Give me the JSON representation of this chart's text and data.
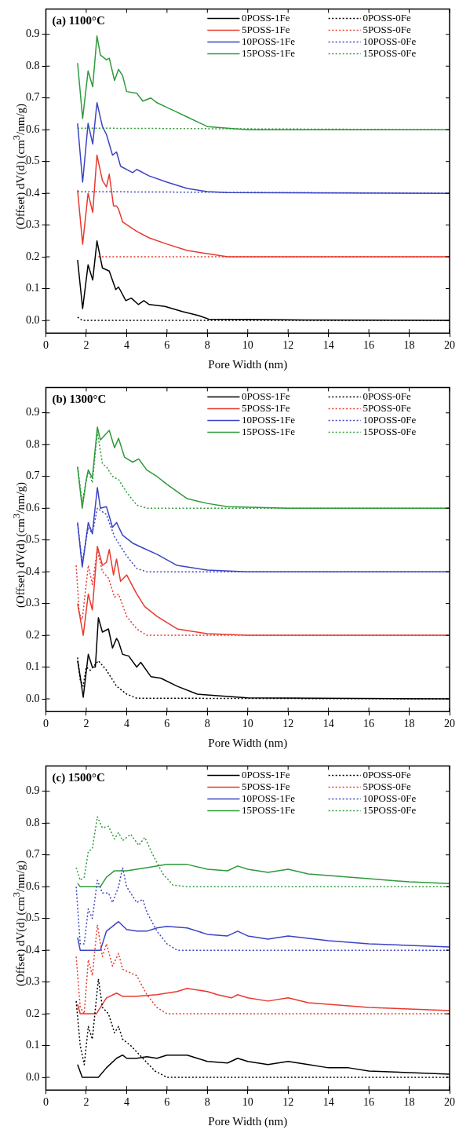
{
  "chart_data": [
    {
      "type": "line",
      "title": "(a) 1100°C",
      "xlabel": "Pore Width (nm)",
      "ylabel": "(Offset) dV(d) (cm$^{3}$/nm/g)",
      "xlim": [
        0,
        20
      ],
      "xticks": [
        0,
        2,
        4,
        6,
        8,
        10,
        12,
        14,
        16,
        18,
        20
      ],
      "ylim": [
        -0.04,
        0.98
      ],
      "yticks": [
        {
          "value": 0,
          "label": "0.0"
        },
        {
          "value": 0.1,
          "label": "0.1"
        },
        {
          "value": 0.2,
          "label": "0.2"
        },
        {
          "value": 0.3,
          "label": "0.3"
        },
        {
          "value": 0.4,
          "label": "0.4"
        },
        {
          "value": 0.5,
          "label": "0.5"
        },
        {
          "value": 0.6,
          "label": "0.6"
        },
        {
          "value": 0.7,
          "label": "0.7"
        },
        {
          "value": 0.8,
          "label": "0.8"
        },
        {
          "value": 0.9,
          "label": "0.9"
        }
      ],
      "grid": false,
      "legend": "top right",
      "marker": "none",
      "series": [
        {
          "name": "0POSS-1Fe",
          "color": "#000000",
          "line_style": "solid",
          "x": [
            1.57,
            1.82,
            2.09,
            2.32,
            2.53,
            2.8,
            3.14,
            3.46,
            3.6,
            3.96,
            4.23,
            4.58,
            4.85,
            5.12,
            5.9,
            6.76,
            7.58,
            8.06,
            10,
            12.8,
            20
          ],
          "values": [
            0.19,
            0.037,
            0.175,
            0.127,
            0.25,
            0.165,
            0.155,
            0.097,
            0.105,
            0.062,
            0.07,
            0.05,
            0.062,
            0.05,
            0.044,
            0.028,
            0.015,
            0.004,
            0.003,
            0.001,
            0
          ]
        },
        {
          "name": "0POSS-0Fe",
          "color": "#000000",
          "line_style": "dotted",
          "x": [
            1.57,
            1.8,
            20
          ],
          "values": [
            0.01,
            0,
            0
          ]
        },
        {
          "name": "5POSS-1Fe",
          "color": "#e8392f",
          "line_style": "solid",
          "x": [
            1.57,
            1.82,
            2.09,
            2.32,
            2.53,
            2.8,
            3.0,
            3.14,
            3.35,
            3.5,
            3.6,
            3.8,
            4.5,
            5.1,
            6,
            7,
            8,
            9,
            20
          ],
          "values": [
            0.41,
            0.24,
            0.4,
            0.34,
            0.52,
            0.44,
            0.42,
            0.46,
            0.36,
            0.36,
            0.35,
            0.31,
            0.28,
            0.26,
            0.24,
            0.22,
            0.21,
            0.2,
            0.2
          ]
        },
        {
          "name": "5POSS-0Fe",
          "color": "#e8392f",
          "line_style": "dotted",
          "x": [
            2.6,
            20
          ],
          "values": [
            0.2,
            0.2
          ]
        },
        {
          "name": "10POSS-1Fe",
          "color": "#3b44c4",
          "line_style": "solid",
          "x": [
            1.57,
            1.82,
            2.09,
            2.32,
            2.53,
            2.8,
            3.0,
            3.3,
            3.5,
            3.7,
            4.3,
            4.5,
            5.1,
            6,
            7,
            8,
            9,
            20
          ],
          "values": [
            0.62,
            0.435,
            0.62,
            0.555,
            0.685,
            0.61,
            0.585,
            0.52,
            0.53,
            0.485,
            0.465,
            0.475,
            0.455,
            0.435,
            0.415,
            0.405,
            0.402,
            0.4
          ]
        },
        {
          "name": "10POSS-0Fe",
          "color": "#3b44c4",
          "line_style": "dotted",
          "x": [
            1.57,
            20
          ],
          "values": [
            0.405,
            0.4
          ]
        },
        {
          "name": "15POSS-1Fe",
          "color": "#2e9a3a",
          "line_style": "solid",
          "x": [
            1.57,
            1.82,
            2.09,
            2.32,
            2.53,
            2.7,
            3.0,
            3.14,
            3.4,
            3.6,
            3.8,
            4.0,
            4.5,
            4.8,
            5.2,
            5.5,
            6,
            6.5,
            7,
            8,
            9,
            10,
            20
          ],
          "values": [
            0.81,
            0.635,
            0.785,
            0.735,
            0.895,
            0.835,
            0.82,
            0.825,
            0.755,
            0.79,
            0.77,
            0.72,
            0.715,
            0.69,
            0.7,
            0.685,
            0.67,
            0.655,
            0.64,
            0.61,
            0.605,
            0.6,
            0.6
          ]
        },
        {
          "name": "15POSS-0Fe",
          "color": "#2e9a3a",
          "line_style": "dotted",
          "x": [
            1.57,
            20
          ],
          "values": [
            0.605,
            0.6
          ]
        }
      ]
    },
    {
      "type": "line",
      "title": "(b) 1300°C",
      "xlabel": "Pore Width (nm)",
      "ylabel": "(Offset) dV(d) (cm$^{3}$/nm/g)",
      "xlim": [
        0,
        20
      ],
      "xticks": [
        0,
        2,
        4,
        6,
        8,
        10,
        12,
        14,
        16,
        18,
        20
      ],
      "ylim": [
        -0.04,
        0.98
      ],
      "yticks": [
        {
          "value": 0,
          "label": "0.0"
        },
        {
          "value": 0.1,
          "label": "0.1"
        },
        {
          "value": 0.2,
          "label": "0.2"
        },
        {
          "value": 0.3,
          "label": "0.3"
        },
        {
          "value": 0.4,
          "label": "0.4"
        },
        {
          "value": 0.5,
          "label": "0.5"
        },
        {
          "value": 0.6,
          "label": "0.6"
        },
        {
          "value": 0.7,
          "label": "0.7"
        },
        {
          "value": 0.8,
          "label": "0.8"
        },
        {
          "value": 0.9,
          "label": "0.9"
        }
      ],
      "grid": false,
      "legend": "top right",
      "marker": "none",
      "series": [
        {
          "name": "0POSS-1Fe",
          "color": "#000000",
          "line_style": "solid",
          "x": [
            1.57,
            1.7,
            1.85,
            2.1,
            2.3,
            2.45,
            2.6,
            2.8,
            3.1,
            3.3,
            3.5,
            3.6,
            3.8,
            4.1,
            4.5,
            4.7,
            5.2,
            5.7,
            6.5,
            7.5,
            8.5,
            10,
            20
          ],
          "values": [
            0.12,
            0.07,
            0.005,
            0.14,
            0.1,
            0.1,
            0.255,
            0.21,
            0.22,
            0.16,
            0.19,
            0.18,
            0.14,
            0.135,
            0.1,
            0.115,
            0.07,
            0.065,
            0.04,
            0.015,
            0.01,
            0.003,
            0
          ]
        },
        {
          "name": "0POSS-0Fe",
          "color": "#000000",
          "line_style": "dotted",
          "x": [
            1.57,
            1.7,
            1.85,
            2.0,
            2.2,
            2.6,
            3.0,
            3.5,
            4.0,
            4.5,
            20
          ],
          "values": [
            0.13,
            0.06,
            0.04,
            0.1,
            0.09,
            0.12,
            0.09,
            0.04,
            0.015,
            0.002,
            0
          ]
        },
        {
          "name": "5POSS-1Fe",
          "color": "#e8392f",
          "line_style": "solid",
          "x": [
            1.57,
            1.85,
            2.1,
            2.3,
            2.55,
            2.8,
            3.0,
            3.14,
            3.35,
            3.5,
            3.7,
            4.0,
            4.5,
            4.9,
            5.5,
            6.5,
            8,
            10,
            20
          ],
          "values": [
            0.3,
            0.2,
            0.33,
            0.28,
            0.48,
            0.42,
            0.43,
            0.47,
            0.39,
            0.44,
            0.37,
            0.39,
            0.33,
            0.29,
            0.26,
            0.22,
            0.205,
            0.2,
            0.2
          ]
        },
        {
          "name": "5POSS-0Fe",
          "color": "#e8392f",
          "line_style": "dotted",
          "x": [
            1.5,
            1.65,
            1.8,
            2.1,
            2.3,
            2.55,
            2.8,
            3.1,
            3.4,
            3.6,
            4.0,
            4.5,
            5.0,
            20
          ],
          "values": [
            0.42,
            0.27,
            0.25,
            0.42,
            0.36,
            0.47,
            0.4,
            0.38,
            0.32,
            0.33,
            0.26,
            0.22,
            0.2,
            0.2
          ]
        },
        {
          "name": "10POSS-1Fe",
          "color": "#3b44c4",
          "line_style": "solid",
          "x": [
            1.57,
            1.8,
            2.1,
            2.3,
            2.55,
            2.7,
            3.0,
            3.3,
            3.5,
            3.8,
            4.3,
            4.8,
            5.5,
            6.5,
            8,
            10,
            20
          ],
          "values": [
            0.555,
            0.415,
            0.555,
            0.52,
            0.665,
            0.6,
            0.605,
            0.54,
            0.555,
            0.515,
            0.49,
            0.475,
            0.455,
            0.42,
            0.405,
            0.4,
            0.4
          ]
        },
        {
          "name": "10POSS-0Fe",
          "color": "#3b44c4",
          "line_style": "dotted",
          "x": [
            1.57,
            1.8,
            2.1,
            2.3,
            2.55,
            3.0,
            3.4,
            4.0,
            4.5,
            5.0,
            20
          ],
          "values": [
            0.55,
            0.43,
            0.54,
            0.52,
            0.6,
            0.58,
            0.51,
            0.45,
            0.41,
            0.4,
            0.4
          ]
        },
        {
          "name": "15POSS-1Fe",
          "color": "#2e9a3a",
          "line_style": "solid",
          "x": [
            1.57,
            1.8,
            2.0,
            2.1,
            2.3,
            2.55,
            2.7,
            3.14,
            3.4,
            3.6,
            3.9,
            4.3,
            4.6,
            5.0,
            5.5,
            6,
            7,
            8,
            9,
            12,
            20
          ],
          "values": [
            0.73,
            0.6,
            0.69,
            0.72,
            0.695,
            0.855,
            0.815,
            0.845,
            0.79,
            0.82,
            0.76,
            0.745,
            0.755,
            0.72,
            0.7,
            0.675,
            0.63,
            0.615,
            0.605,
            0.6,
            0.6
          ]
        },
        {
          "name": "15POSS-0Fe",
          "color": "#2e9a3a",
          "line_style": "dotted",
          "x": [
            1.57,
            1.8,
            2.1,
            2.3,
            2.55,
            2.8,
            3.0,
            3.3,
            3.6,
            4.0,
            4.5,
            5.0,
            20
          ],
          "values": [
            0.73,
            0.62,
            0.72,
            0.68,
            0.84,
            0.74,
            0.73,
            0.7,
            0.69,
            0.65,
            0.61,
            0.6,
            0.6
          ]
        }
      ]
    },
    {
      "type": "line",
      "title": "(c) 1500°C",
      "xlabel": "Pore Width (nm)",
      "ylabel": "(Offset) dV(d) (cm$^{3}$/nm/g)",
      "xlim": [
        0,
        20
      ],
      "xticks": [
        0,
        2,
        4,
        6,
        8,
        10,
        12,
        14,
        16,
        18,
        20
      ],
      "ylim": [
        -0.04,
        0.98
      ],
      "yticks": [
        {
          "value": 0,
          "label": "0.0"
        },
        {
          "value": 0.1,
          "label": "0.1"
        },
        {
          "value": 0.2,
          "label": "0.2"
        },
        {
          "value": 0.3,
          "label": "0.3"
        },
        {
          "value": 0.4,
          "label": "0.4"
        },
        {
          "value": 0.5,
          "label": "0.5"
        },
        {
          "value": 0.6,
          "label": "0.6"
        },
        {
          "value": 0.7,
          "label": "0.7"
        },
        {
          "value": 0.8,
          "label": "0.8"
        },
        {
          "value": 0.9,
          "label": "0.9"
        }
      ],
      "grid": false,
      "legend": "top right",
      "marker": "none",
      "series": [
        {
          "name": "0POSS-1Fe",
          "color": "#000000",
          "line_style": "solid",
          "x": [
            1.57,
            1.8,
            2.6,
            3.0,
            3.5,
            3.8,
            4.0,
            4.5,
            5.0,
            5.5,
            6.0,
            6.5,
            7,
            7.5,
            8,
            9,
            9.5,
            10,
            11,
            12,
            13,
            14,
            15,
            16,
            18,
            20
          ],
          "values": [
            0.04,
            0,
            0,
            0.03,
            0.06,
            0.07,
            0.06,
            0.06,
            0.065,
            0.06,
            0.07,
            0.07,
            0.07,
            0.06,
            0.05,
            0.045,
            0.06,
            0.05,
            0.04,
            0.05,
            0.04,
            0.03,
            0.03,
            0.02,
            0.015,
            0.01
          ]
        },
        {
          "name": "0POSS-0Fe",
          "color": "#000000",
          "line_style": "dotted",
          "x": [
            1.5,
            1.7,
            1.9,
            2.1,
            2.3,
            2.6,
            2.8,
            3.1,
            3.4,
            3.6,
            3.8,
            4.2,
            4.8,
            5.4,
            6,
            20
          ],
          "values": [
            0.24,
            0.1,
            0.04,
            0.16,
            0.12,
            0.31,
            0.22,
            0.2,
            0.14,
            0.16,
            0.12,
            0.1,
            0.06,
            0.02,
            0,
            0
          ]
        },
        {
          "name": "5POSS-1Fe",
          "color": "#e8392f",
          "line_style": "solid",
          "x": [
            1.57,
            1.7,
            2.5,
            3.0,
            3.5,
            3.8,
            4.5,
            5.5,
            6.5,
            7,
            8,
            8.5,
            9.2,
            9.5,
            10,
            11,
            12,
            13,
            14,
            16,
            18,
            20
          ],
          "values": [
            0.23,
            0.2,
            0.2,
            0.25,
            0.265,
            0.255,
            0.255,
            0.26,
            0.27,
            0.28,
            0.27,
            0.26,
            0.25,
            0.26,
            0.25,
            0.24,
            0.25,
            0.235,
            0.23,
            0.22,
            0.215,
            0.21
          ]
        },
        {
          "name": "5POSS-0Fe",
          "color": "#e8392f",
          "line_style": "dotted",
          "x": [
            1.5,
            1.7,
            1.9,
            2.1,
            2.3,
            2.55,
            2.8,
            3.0,
            3.3,
            3.6,
            3.8,
            4.5,
            5.0,
            5.5,
            6,
            20
          ],
          "values": [
            0.38,
            0.22,
            0.2,
            0.37,
            0.32,
            0.48,
            0.38,
            0.42,
            0.35,
            0.39,
            0.34,
            0.32,
            0.26,
            0.22,
            0.2,
            0.2
          ]
        },
        {
          "name": "10POSS-1Fe",
          "color": "#3b44c4",
          "line_style": "solid",
          "x": [
            1.57,
            1.7,
            2.7,
            3.0,
            3.6,
            4.0,
            4.5,
            5.0,
            5.5,
            6.0,
            7,
            8,
            9,
            9.5,
            10,
            11,
            12,
            14,
            16,
            18,
            20
          ],
          "values": [
            0.44,
            0.4,
            0.4,
            0.46,
            0.49,
            0.465,
            0.46,
            0.46,
            0.47,
            0.475,
            0.47,
            0.45,
            0.445,
            0.46,
            0.445,
            0.435,
            0.445,
            0.43,
            0.42,
            0.415,
            0.41
          ]
        },
        {
          "name": "10POSS-0Fe",
          "color": "#3b44c4",
          "line_style": "dotted",
          "x": [
            1.5,
            1.7,
            1.9,
            2.1,
            2.3,
            2.55,
            2.8,
            3.1,
            3.3,
            3.6,
            3.8,
            4.0,
            4.5,
            4.8,
            5.0,
            5.5,
            6,
            6.5,
            20
          ],
          "values": [
            0.6,
            0.42,
            0.42,
            0.53,
            0.5,
            0.62,
            0.58,
            0.58,
            0.55,
            0.6,
            0.66,
            0.6,
            0.55,
            0.56,
            0.52,
            0.46,
            0.42,
            0.4,
            0.4
          ]
        },
        {
          "name": "15POSS-1Fe",
          "color": "#2e9a3a",
          "line_style": "solid",
          "x": [
            1.57,
            1.7,
            2.7,
            3.0,
            3.4,
            4.0,
            5.0,
            6.0,
            7,
            8,
            9,
            9.5,
            10,
            11,
            12,
            13,
            14,
            16,
            18,
            20
          ],
          "values": [
            0.61,
            0.6,
            0.6,
            0.63,
            0.65,
            0.65,
            0.66,
            0.67,
            0.67,
            0.655,
            0.65,
            0.665,
            0.655,
            0.645,
            0.655,
            0.64,
            0.635,
            0.625,
            0.615,
            0.61
          ]
        },
        {
          "name": "15POSS-0Fe",
          "color": "#2e9a3a",
          "line_style": "dotted",
          "x": [
            1.5,
            1.7,
            1.9,
            2.1,
            2.3,
            2.55,
            2.8,
            3.1,
            3.4,
            3.6,
            3.8,
            4.2,
            4.6,
            4.9,
            5.3,
            5.8,
            6.3,
            7,
            20
          ],
          "values": [
            0.66,
            0.62,
            0.63,
            0.71,
            0.72,
            0.82,
            0.785,
            0.79,
            0.75,
            0.77,
            0.745,
            0.765,
            0.73,
            0.755,
            0.7,
            0.64,
            0.605,
            0.6,
            0.6
          ]
        }
      ]
    }
  ]
}
